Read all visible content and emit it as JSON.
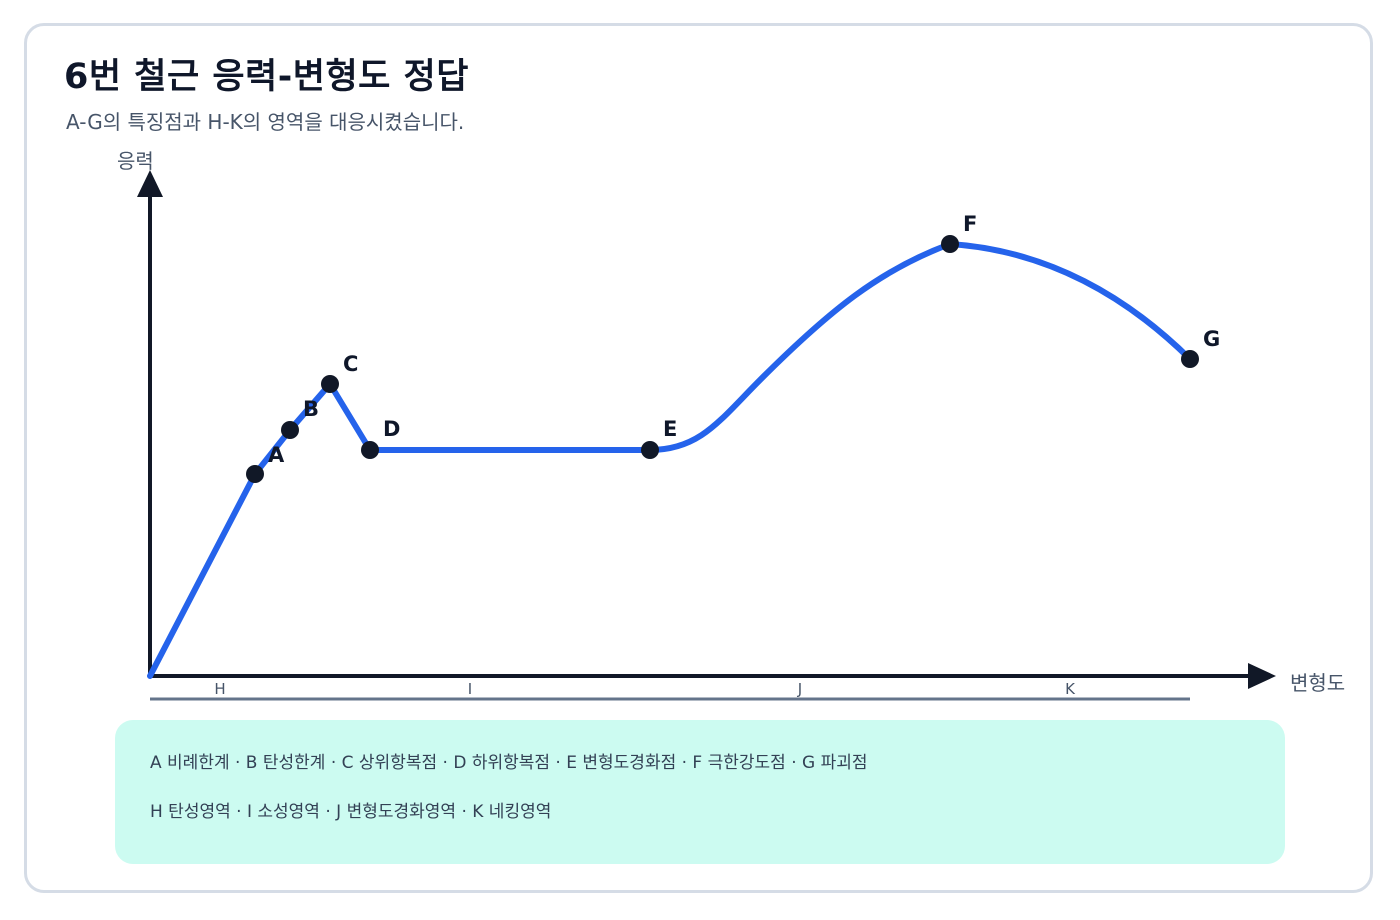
{
  "header": {
    "title": "6번 철근 응력-변형도 정답",
    "subtitle": "A-G의 특징점과 H-K의 영역을 대응시켰습니다."
  },
  "diagram": {
    "y_axis_label": "응력",
    "x_axis_label": "변형도",
    "points": [
      {
        "label": "A"
      },
      {
        "label": "B"
      },
      {
        "label": "C"
      },
      {
        "label": "D"
      },
      {
        "label": "E"
      },
      {
        "label": "F"
      },
      {
        "label": "G"
      }
    ],
    "regions": [
      {
        "label": "H"
      },
      {
        "label": "I"
      },
      {
        "label": "J"
      },
      {
        "label": "K"
      }
    ],
    "colors": {
      "curve": "#2563eb",
      "axis": "#111827",
      "point": "#111827",
      "region_line": "#64748b"
    }
  },
  "legend": {
    "points_line": "A 비례한계 · B 탄성한계 · C 상위항복점 · D 하위항복점 · E 변형도경화점 · F 극한강도점 · G 파괴점",
    "regions_line": "H 탄성영역 · I 소성영역 · J 변형도경화영역 · K 네킹영역"
  }
}
